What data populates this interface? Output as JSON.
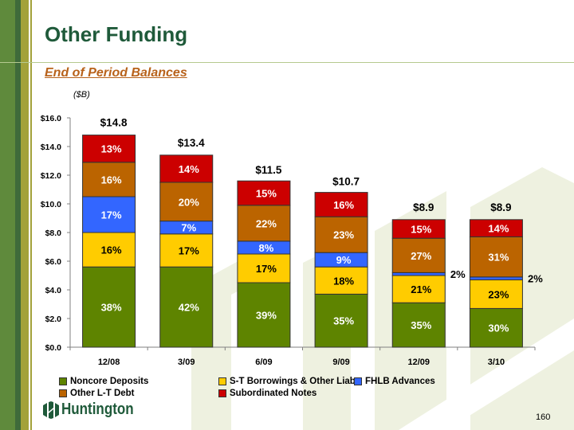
{
  "header": {
    "title": "Other Funding",
    "subtitle": "End of Period Balances",
    "units": "($B)"
  },
  "footer": {
    "logo_text": "Huntington",
    "page_number": "160"
  },
  "colors": {
    "noncore": "#5e8400",
    "stb": "#ffcc00",
    "fhlb": "#3366ff",
    "other_lt": "#bb6400",
    "subnotes": "#cc0000",
    "title": "#1f5a3a",
    "subtitle": "#b8621b"
  },
  "chart_data": {
    "type": "bar",
    "stacked": true,
    "title": "",
    "xlabel": "",
    "ylabel": "($B)",
    "ylim": [
      0,
      16
    ],
    "yticks": [
      0,
      2,
      4,
      6,
      8,
      10,
      12,
      14,
      16
    ],
    "ytick_labels": [
      "$0.0",
      "$2.0",
      "$4.0",
      "$6.0",
      "$8.0",
      "$10.0",
      "$12.0",
      "$14.0",
      "$16.0"
    ],
    "categories": [
      "12/08",
      "3/09",
      "6/09",
      "9/09",
      "12/09",
      "3/10"
    ],
    "totals": [
      14.8,
      13.4,
      11.5,
      10.7,
      8.9,
      8.9
    ],
    "total_labels": [
      "$14.8",
      "$13.4",
      "$11.5",
      "$10.7",
      "$8.9",
      "$8.9"
    ],
    "legend_position": "bottom",
    "series": [
      {
        "name": "Noncore Deposits",
        "key": "noncore",
        "values": [
          5.6,
          5.6,
          4.5,
          3.7,
          3.1,
          2.7
        ],
        "labels": [
          "38%",
          "42%",
          "39%",
          "35%",
          "35%",
          "30%"
        ],
        "label_color": "#ffffff"
      },
      {
        "name": "S-T Borrowings & Other Liab.",
        "key": "stb",
        "values": [
          2.4,
          2.3,
          2.0,
          1.9,
          1.9,
          2.0
        ],
        "labels": [
          "16%",
          "17%",
          "17%",
          "18%",
          "21%",
          "23%"
        ],
        "label_color": "#000000"
      },
      {
        "name": "FHLB Advances",
        "key": "fhlb",
        "values": [
          2.5,
          0.9,
          0.9,
          1.0,
          0.2,
          0.2
        ],
        "labels": [
          "17%",
          "7%",
          "8%",
          "9%",
          "2%",
          "2%"
        ],
        "label_color": "#ffffff"
      },
      {
        "name": "Other L-T Debt",
        "key": "other_lt",
        "values": [
          2.4,
          2.7,
          2.5,
          2.5,
          2.4,
          2.8
        ],
        "labels": [
          "16%",
          "20%",
          "22%",
          "23%",
          "27%",
          "31%"
        ],
        "label_color": "#ffffff"
      },
      {
        "name": "Subordinated Notes",
        "key": "subnotes",
        "values": [
          1.9,
          1.9,
          1.7,
          1.7,
          1.3,
          1.2
        ],
        "labels": [
          "13%",
          "14%",
          "15%",
          "16%",
          "15%",
          "14%"
        ],
        "label_color": "#ffffff"
      }
    ]
  }
}
